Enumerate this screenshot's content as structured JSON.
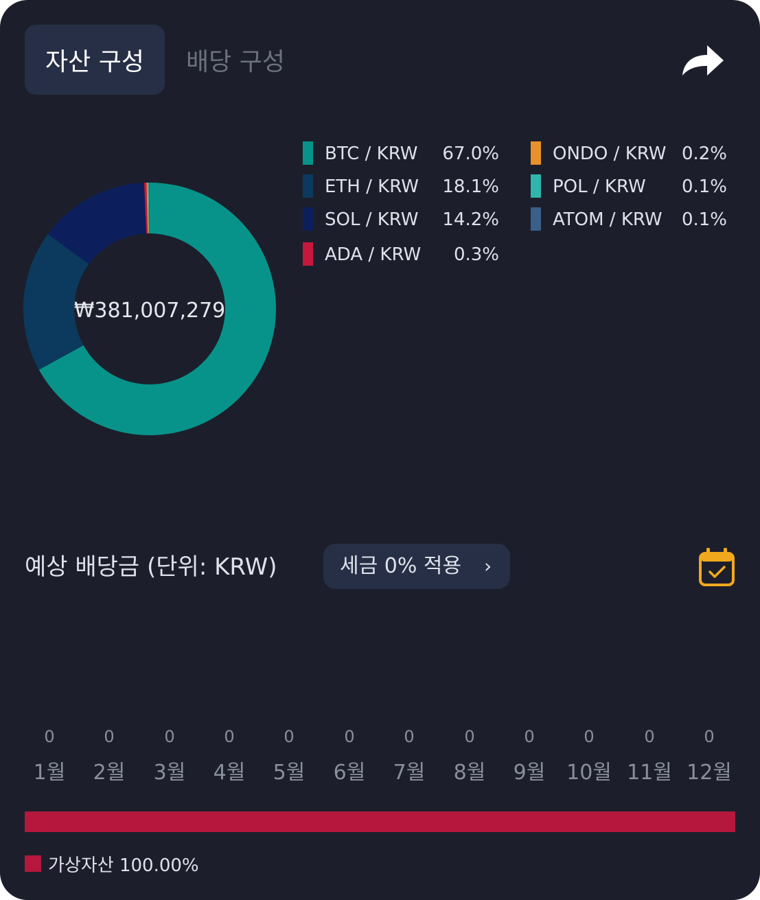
{
  "tabs": [
    {
      "label": "자산 구성",
      "active": true
    },
    {
      "label": "배당 구성",
      "active": false
    }
  ],
  "share_icon": "share-arrow-icon",
  "chart_data": {
    "type": "pie",
    "style": "donut",
    "center_text": "₩381,007,279",
    "slices": [
      {
        "label": "BTC / KRW",
        "pct_label": "67.0%",
        "value": 67.0,
        "color": "#08938a"
      },
      {
        "label": "ETH / KRW",
        "pct_label": "18.1%",
        "value": 18.1,
        "color": "#0b3a5e"
      },
      {
        "label": "SOL / KRW",
        "pct_label": "14.2%",
        "value": 14.2,
        "color": "#0c1f5c"
      },
      {
        "label": "ADA / KRW",
        "pct_label": "0.3%",
        "value": 0.3,
        "color": "#c8173d"
      },
      {
        "label": "ONDO / KRW",
        "pct_label": "0.2%",
        "value": 0.2,
        "color": "#e8902a"
      },
      {
        "label": "POL / KRW",
        "pct_label": "0.1%",
        "value": 0.1,
        "color": "#2fb5ad"
      },
      {
        "label": "ATOM / KRW",
        "pct_label": "0.1%",
        "value": 0.1,
        "color": "#3a5f88"
      }
    ]
  },
  "dividend": {
    "title": "예상 배당금 (단위: KRW)",
    "tax_button": "세금 0% 적용",
    "chevron": "›",
    "calendar_icon": "calendar-check-icon",
    "months": [
      {
        "name": "1월",
        "value": "0"
      },
      {
        "name": "2월",
        "value": "0"
      },
      {
        "name": "3월",
        "value": "0"
      },
      {
        "name": "4월",
        "value": "0"
      },
      {
        "name": "5월",
        "value": "0"
      },
      {
        "name": "6월",
        "value": "0"
      },
      {
        "name": "7월",
        "value": "0"
      },
      {
        "name": "8월",
        "value": "0"
      },
      {
        "name": "9월",
        "value": "0"
      },
      {
        "name": "10월",
        "value": "0"
      },
      {
        "name": "11월",
        "value": "0"
      },
      {
        "name": "12월",
        "value": "0"
      }
    ]
  },
  "allocation": {
    "label": "가상자산 100.00%",
    "value": 100.0,
    "color": "#b5173d"
  }
}
